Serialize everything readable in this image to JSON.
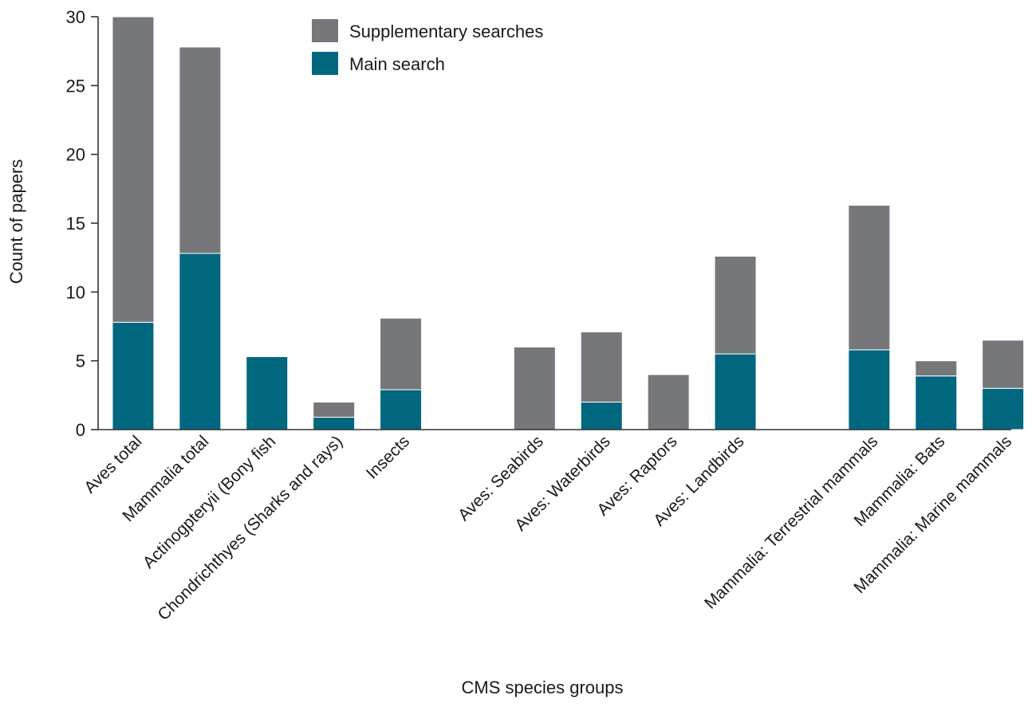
{
  "chart_data": {
    "type": "bar",
    "stacked": true,
    "xlabel": "CMS species groups",
    "ylabel": "Count of papers",
    "ylim": [
      0,
      30
    ],
    "yticks": [
      0,
      5,
      10,
      15,
      20,
      25,
      30
    ],
    "grid": false,
    "legend_position": "top-center",
    "categories": [
      "Aves total",
      "Mammalia total",
      "Actinogpteryii (Bony fish",
      "Chondrichthyes (Sharks and rays)",
      "Insects",
      "",
      "Aves: Seabirds",
      "Aves: Waterbirds",
      "Aves: Raptors",
      "Aves: Landbirds",
      "",
      "Mammalia: Terrestrial mammals",
      "Mammalia: Bats",
      "Mammalia: Marine mammals"
    ],
    "series": [
      {
        "name": "Main search",
        "color": "#00677f",
        "values": [
          7.8,
          12.8,
          5.3,
          0.9,
          2.9,
          null,
          0,
          2.0,
          0,
          5.5,
          null,
          5.8,
          3.9,
          3.0
        ]
      },
      {
        "name": "Supplementary searches",
        "color": "#76777a",
        "values": [
          22.2,
          15.0,
          0,
          1.1,
          5.2,
          null,
          6.0,
          5.1,
          4.0,
          7.1,
          null,
          10.5,
          1.1,
          3.5
        ]
      }
    ],
    "legend": [
      {
        "name": "Supplementary searches",
        "color": "#76777a"
      },
      {
        "name": "Main search",
        "color": "#00677f"
      }
    ]
  }
}
